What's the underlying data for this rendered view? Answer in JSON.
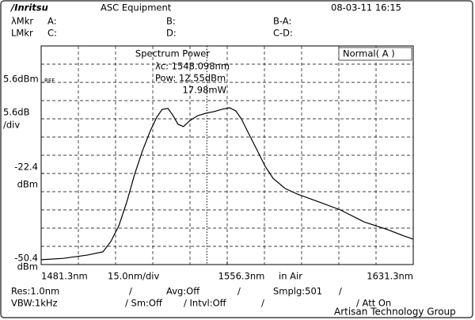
{
  "screen": {
    "logo": "/Inritsu",
    "equipment": "ASC Equipment",
    "datetime": "08-03-11 16:15",
    "wmkr": "λMkr",
    "a": "A:",
    "b": "B:",
    "ba": "B-A:",
    "lmkr": "LMkr",
    "c": "C:",
    "d": "D:",
    "cd": "C-D:",
    "mode": "Normal( A )",
    "ref": "REF",
    "scale": "5.6dB",
    "per_div": "/div",
    "unit_mid": "dBm",
    "unit_bottom": "dBm",
    "span_div": "15.0nm/div",
    "medium": "in Air",
    "res": "Res:1.0nm",
    "sep1": "/",
    "avg": "Avg:Off",
    "sep2": "/",
    "smplg": "Smplg:501",
    "sep3": "/",
    "vbw": "VBW:1kHz",
    "sm": "/ Sm:Off",
    "intvl": "/ Intvl:Off",
    "sep4": "/",
    "att": "/ Att On",
    "watermark": "Artisan Technology Group"
  },
  "chart_data": {
    "type": "line",
    "title": "Spectrum Power",
    "marker": {
      "value": 1548.098,
      "label": "λc: 1548.098nm"
    },
    "power": "Pow:  12.55dBm",
    "power_mw": "17.98mW",
    "x": [
      1481.3,
      1490.2,
      1499.8,
      1506.2,
      1509.4,
      1512.6,
      1515.8,
      1519.0,
      1522.2,
      1525.3,
      1527.9,
      1530.1,
      1532.4,
      1534.3,
      1536.5,
      1538.7,
      1541.3,
      1544.5,
      1547.7,
      1550.9,
      1554.1,
      1557.3,
      1559.8,
      1562.0,
      1565.2,
      1568.4,
      1571.6,
      1574.8,
      1579.6,
      1584.4,
      1592.4,
      1601.9,
      1611.5,
      1621.1,
      1627.5,
      1631.3
    ],
    "series": [
      {
        "name": "A",
        "color": "#000000",
        "values": [
          -48.9,
          -48.5,
          -47.5,
          -46.5,
          -43.3,
          -38.5,
          -31.2,
          -22.6,
          -15.3,
          -9.3,
          -5.1,
          -2.7,
          -2.4,
          -4.4,
          -7.3,
          -8.0,
          -6.1,
          -4.6,
          -3.9,
          -3.4,
          -2.7,
          -2.2,
          -3.2,
          -5.6,
          -10.5,
          -15.3,
          -20.2,
          -23.9,
          -27.0,
          -28.7,
          -30.9,
          -33.6,
          -37.3,
          -39.7,
          -41.6,
          -42.6
        ]
      }
    ],
    "xlim": [
      1481.3,
      1631.3
    ],
    "xticks": [
      {
        "value": 1481.3,
        "label": "1481.3nm"
      },
      {
        "value": 1556.3,
        "label": "1556.3nm"
      },
      {
        "value": 1631.3,
        "label": "1631.3nm"
      }
    ],
    "ylim": [
      -50.4,
      16.8
    ],
    "yticks": [
      {
        "value": 5.6,
        "label": "5.6dBm"
      },
      -22.4,
      -50.4
    ],
    "xgrid": [
      1496.3,
      1511.3,
      1526.3,
      1541.3,
      1556.3,
      1571.3,
      1586.3,
      1601.3,
      1616.3
    ],
    "ygrid": [
      11.2,
      5.6,
      0,
      -5.6,
      -11.2,
      -16.8,
      -22.4,
      -28,
      -33.6,
      -39.2,
      -44.8
    ]
  }
}
